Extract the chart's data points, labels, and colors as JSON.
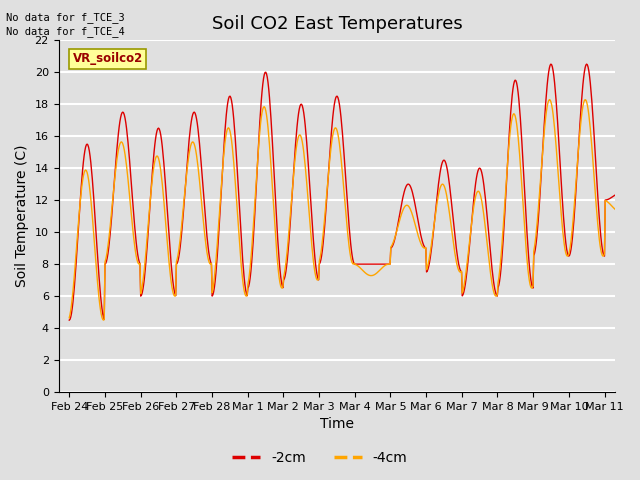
{
  "title": "Soil CO2 East Temperatures",
  "xlabel": "Time",
  "ylabel": "Soil Temperature (C)",
  "ylim": [
    0,
    22
  ],
  "annotation1": "No data for f_TCE_3",
  "annotation2": "No data for f_TCE_4",
  "box_label": "VR_soilco2",
  "legend_labels": [
    "-2cm",
    "-4cm"
  ],
  "line_colors": [
    "#dd0000",
    "#ffa500"
  ],
  "x_tick_labels": [
    "Feb 24",
    "Feb 25",
    "Feb 26",
    "Feb 27",
    "Feb 28",
    "Mar 1",
    "Mar 2",
    "Mar 3",
    "Mar 4",
    "Mar 5",
    "Mar 6",
    "Mar 7",
    "Mar 8",
    "Mar 9",
    "Mar 10",
    "Mar 11"
  ],
  "bg_color": "#e0e0e0",
  "plot_bg_color": "#e0e0e0",
  "grid_color": "#ffffff",
  "title_fontsize": 13,
  "axis_label_fontsize": 10,
  "tick_fontsize": 8,
  "n_days": 16
}
